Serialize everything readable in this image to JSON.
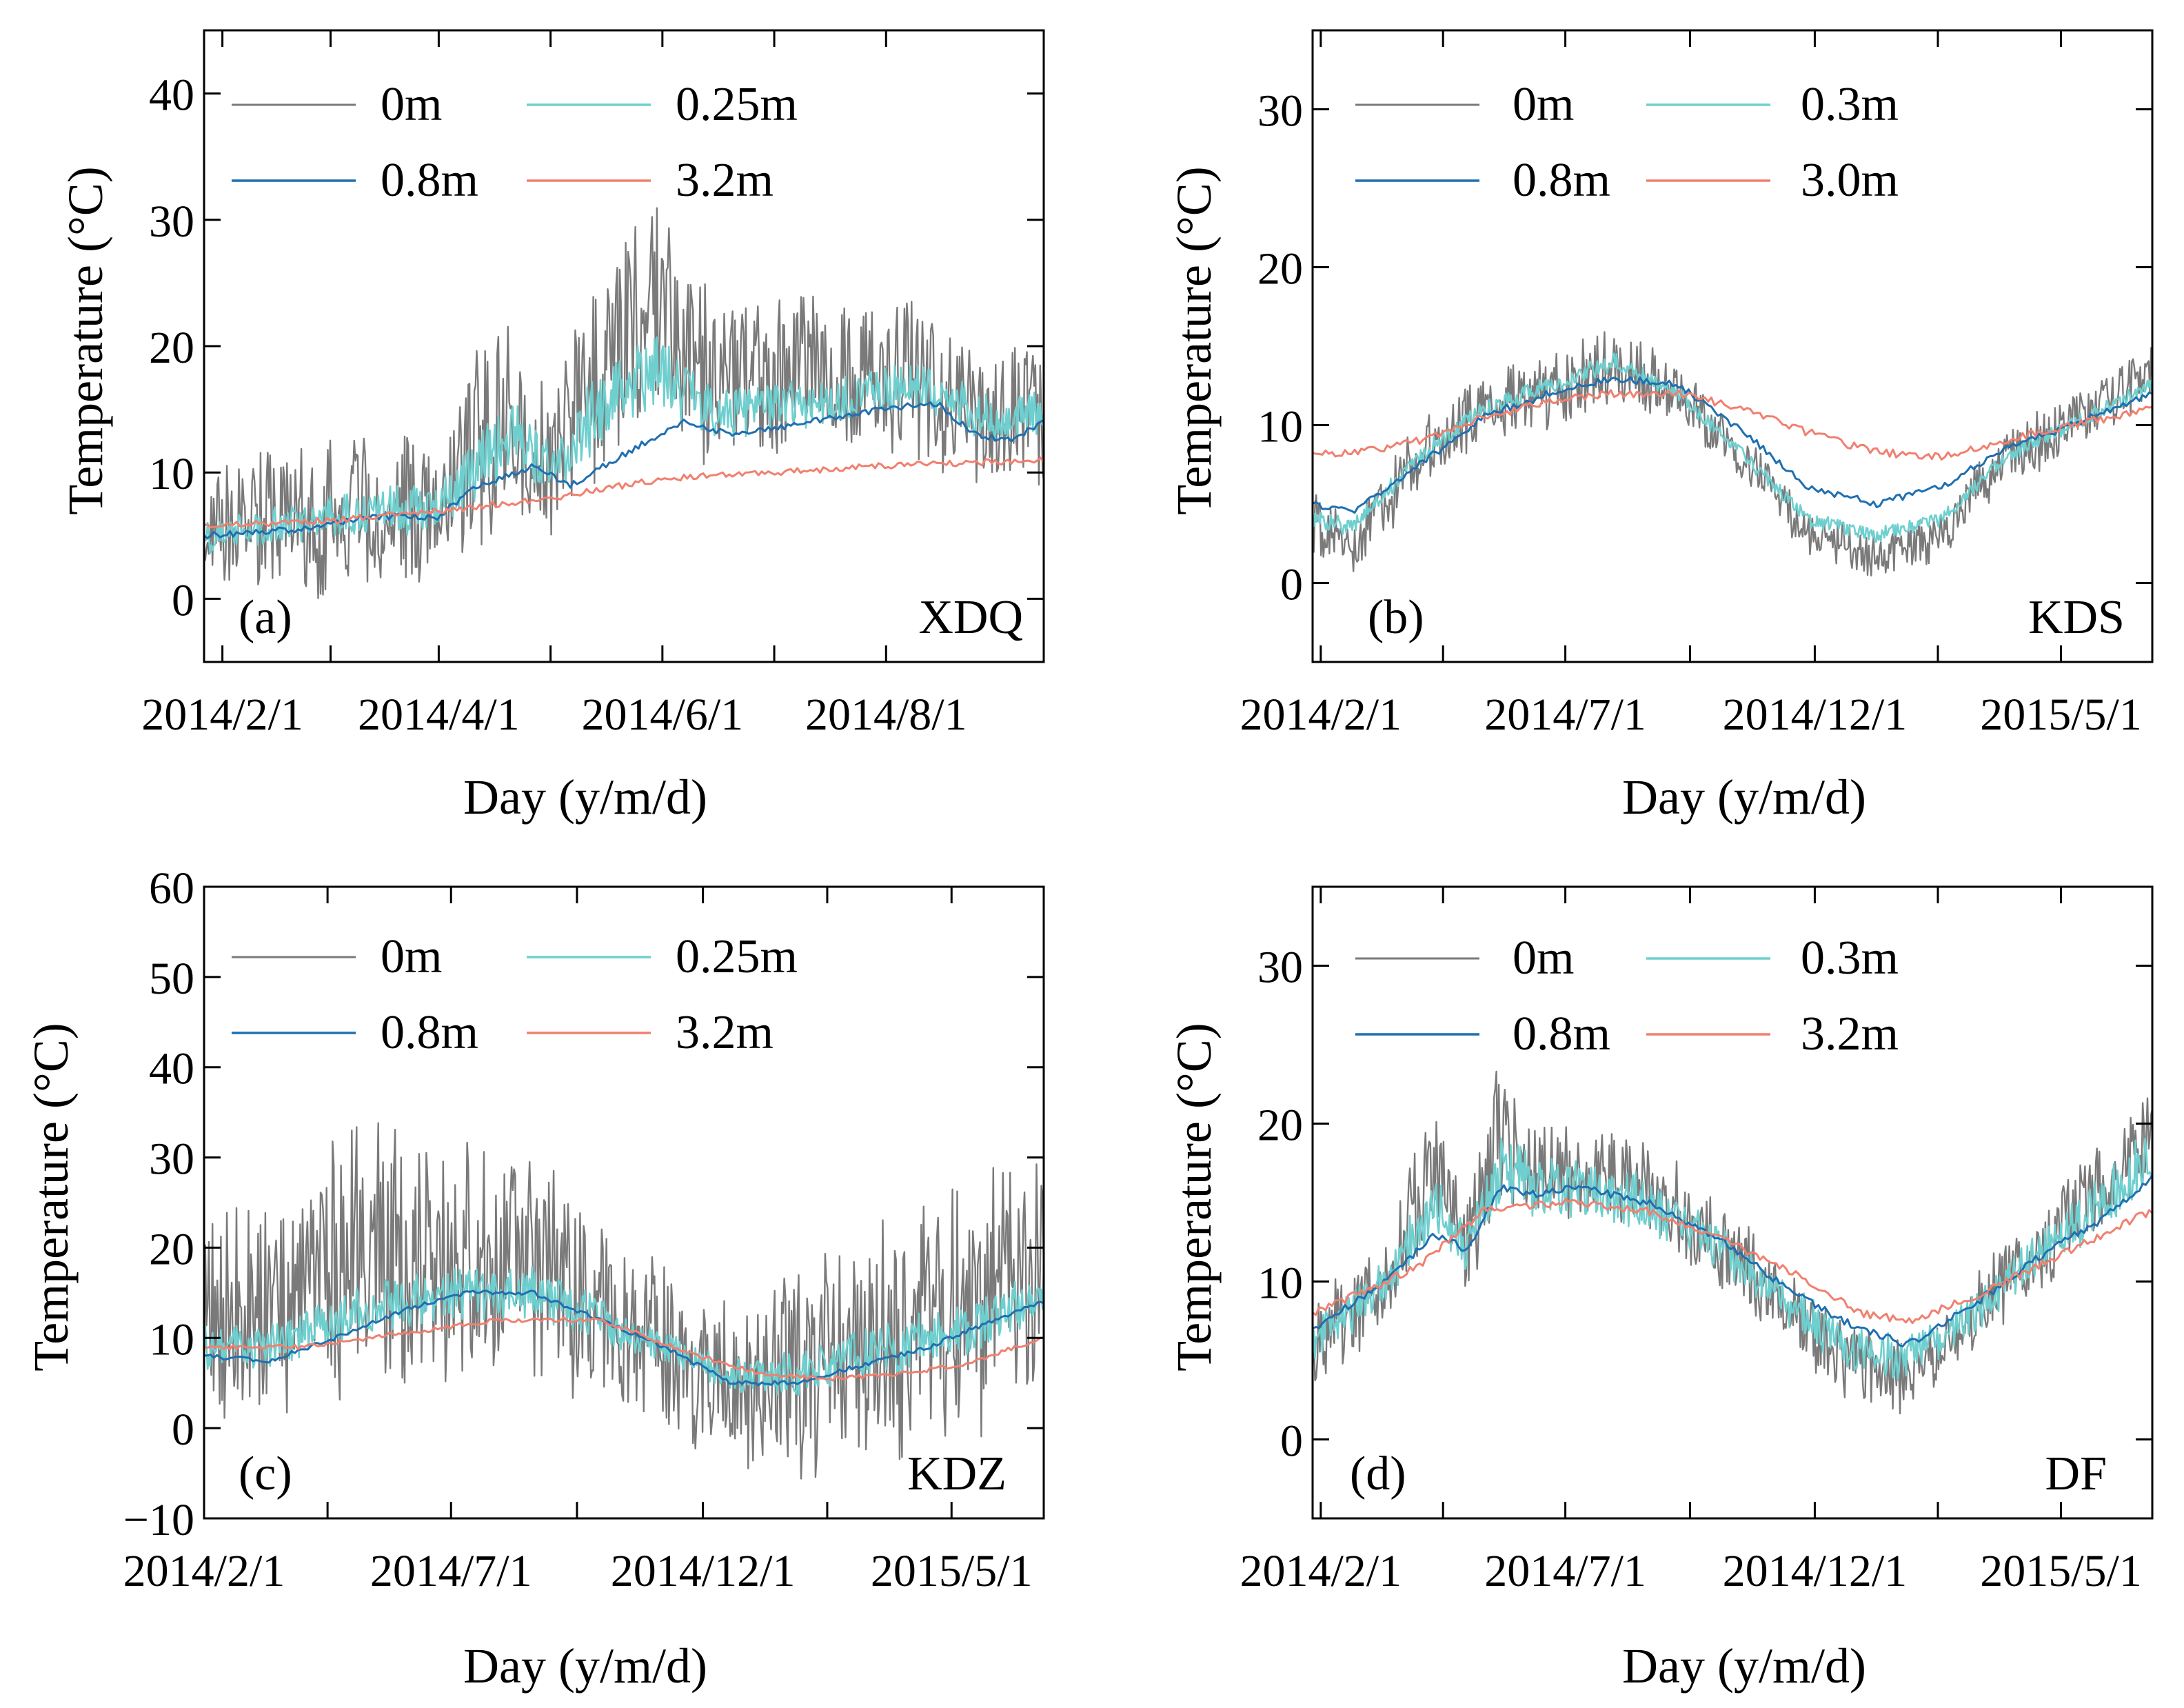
{
  "figure": {
    "colors": {
      "0m": "#7a7a7a",
      "0.25m": "#6fcfcf",
      "0.3m": "#6fcfcf",
      "0.8m": "#1f6fb0",
      "3.2m": "#f08070",
      "3.0m": "#f08070"
    }
  },
  "chart_data": [
    {
      "panel": "(a)",
      "site": "XDQ",
      "type": "line",
      "xlabel": "Day (y/m/d)",
      "ylabel": "Temperature (°C)",
      "ylim": [
        -5,
        45
      ],
      "yticks": [
        "0",
        "10",
        "20",
        "30",
        "40"
      ],
      "xtick_labels": [
        "2014/2/1",
        "2014/4/1",
        "2014/6/1",
        "2014/8/1"
      ],
      "xtick_days": [
        0,
        59,
        120,
        181
      ],
      "xlim_days": [
        -5,
        224
      ],
      "legend": [
        "0m",
        "0.25m",
        "0.8m",
        "3.2m"
      ],
      "series": [
        {
          "name": "0m",
          "x_days": [
            -5,
            20,
            45,
            59,
            70,
            80,
            90,
            100,
            110,
            120,
            130,
            150,
            170,
            190,
            210,
            224
          ],
          "mean": [
            6,
            6,
            7,
            7,
            13,
            15,
            10,
            17,
            21,
            23,
            17,
            17,
            18,
            17,
            14,
            15
          ],
          "amplitude": [
            5,
            6,
            7,
            6,
            9,
            8,
            5,
            9,
            8,
            9,
            8,
            7,
            6,
            7,
            5,
            6
          ]
        },
        {
          "name": "0.25m",
          "x_days": [
            -5,
            20,
            45,
            59,
            70,
            80,
            90,
            100,
            110,
            120,
            130,
            150,
            170,
            190,
            210,
            224
          ],
          "mean": [
            5,
            6,
            7,
            7,
            11,
            13,
            10,
            14,
            17,
            18,
            15,
            15,
            16,
            17,
            14,
            15
          ],
          "amplitude": [
            1.5,
            1.5,
            2,
            2,
            3,
            3,
            2,
            3,
            3,
            3,
            2.5,
            2,
            2,
            2,
            2,
            2
          ]
        },
        {
          "name": "0.8m",
          "x_days": [
            -5,
            20,
            40,
            59,
            70,
            85,
            95,
            110,
            125,
            140,
            160,
            180,
            195,
            205,
            215,
            224
          ],
          "values": [
            5,
            5.5,
            6.5,
            6.5,
            9,
            10.5,
            9,
            11.5,
            14,
            13,
            14,
            15,
            15.5,
            13,
            12.5,
            14
          ]
        },
        {
          "name": "3.2m",
          "x_days": [
            -5,
            30,
            60,
            90,
            120,
            150,
            180,
            224
          ],
          "values": [
            5.8,
            6.2,
            7,
            8,
            9.5,
            10,
            10.5,
            11
          ]
        }
      ]
    },
    {
      "panel": "(b)",
      "site": "KDS",
      "type": "line",
      "xlabel": "Day (y/m/d)",
      "ylabel": "Temperature (°C)",
      "ylim": [
        -5,
        35
      ],
      "yticks": [
        "0",
        "10",
        "20",
        "30"
      ],
      "xtick_labels": [
        "2014/2/1",
        "2014/7/1",
        "2014/12/1",
        "2015/5/1"
      ],
      "xtick_days": [
        0,
        150,
        303,
        454
      ],
      "xlim_days": [
        -5,
        510
      ],
      "legend": [
        "0m",
        "0.3m",
        "0.8m",
        "3.0m"
      ],
      "series": [
        {
          "name": "0m",
          "x_days": [
            -5,
            20,
            60,
            100,
            140,
            180,
            220,
            260,
            300,
            340,
            380,
            420,
            460,
            510
          ],
          "mean": [
            4,
            2,
            8,
            11,
            12,
            14,
            12,
            8,
            3,
            1.5,
            3,
            8,
            10,
            13.5
          ],
          "amplitude": [
            2,
            2,
            2.5,
            2.5,
            2.5,
            2.5,
            2,
            1.5,
            1.5,
            1.5,
            1.5,
            2,
            2,
            2
          ]
        },
        {
          "name": "0.3m",
          "x_days": [
            -5,
            20,
            60,
            100,
            140,
            180,
            220,
            260,
            300,
            340,
            380,
            420,
            460,
            510
          ],
          "mean": [
            4,
            3.5,
            8,
            11,
            12.5,
            14,
            12,
            8,
            4,
            3,
            4,
            8,
            10,
            12.5
          ],
          "amplitude": [
            0.6,
            0.6,
            0.6,
            0.6,
            0.6,
            0.6,
            0.5,
            0.5,
            0.5,
            0.5,
            0.5,
            0.5,
            0.5,
            0.5
          ]
        },
        {
          "name": "0.8m",
          "x_days": [
            -5,
            20,
            60,
            100,
            140,
            180,
            220,
            260,
            300,
            340,
            380,
            420,
            460,
            510
          ],
          "values": [
            5,
            4.5,
            7.5,
            10.5,
            12,
            13,
            12.5,
            9.5,
            6,
            5,
            6,
            8.5,
            10,
            12
          ]
        },
        {
          "name": "3.0m",
          "x_days": [
            -5,
            20,
            60,
            100,
            140,
            180,
            220,
            260,
            300,
            340,
            380,
            420,
            460,
            510
          ],
          "values": [
            8.2,
            8.2,
            9,
            10.5,
            11.5,
            12,
            12,
            11,
            9.5,
            8.3,
            8,
            9,
            10,
            11
          ]
        }
      ]
    },
    {
      "panel": "(c)",
      "site": "KDZ",
      "type": "line",
      "xlabel": "Day (y/m/d)",
      "ylabel": "Temperature (°C)",
      "ylim": [
        -10,
        60
      ],
      "yticks": [
        "−10",
        "0",
        "10",
        "20",
        "30",
        "40",
        "50",
        "60"
      ],
      "xtick_labels": [
        "2014/2/1",
        "2014/7/1",
        "2014/12/1",
        "2015/5/1"
      ],
      "xtick_days": [
        0,
        150,
        303,
        454
      ],
      "xlim_days": [
        0,
        510
      ],
      "legend": [
        "0m",
        "0.25m",
        "0.8m",
        "3.2m"
      ],
      "series": [
        {
          "name": "0m",
          "x_days": [
            0,
            40,
            80,
            120,
            160,
            200,
            240,
            280,
            320,
            360,
            400,
            440,
            480,
            510
          ],
          "mean": [
            13,
            12,
            18,
            20,
            19,
            18,
            12,
            8,
            5,
            6,
            9,
            11,
            14,
            16
          ],
          "amplitude": [
            12,
            12,
            15,
            15,
            14,
            13,
            11,
            10,
            9,
            12,
            14,
            15,
            15,
            15
          ]
        },
        {
          "name": "0.25m",
          "x_days": [
            0,
            40,
            80,
            120,
            160,
            200,
            240,
            280,
            320,
            360,
            400,
            440,
            480,
            510
          ],
          "mean": [
            9,
            9,
            12,
            14,
            15,
            15,
            12,
            9,
            6,
            6,
            8,
            10,
            12,
            15
          ],
          "amplitude": [
            2.5,
            2.5,
            3,
            3,
            3,
            3,
            2.5,
            2,
            2,
            2.5,
            3,
            3,
            3,
            3
          ]
        },
        {
          "name": "0.8m",
          "x_days": [
            0,
            40,
            80,
            120,
            160,
            200,
            240,
            280,
            320,
            360,
            400,
            440,
            480,
            510
          ],
          "values": [
            8,
            7.5,
            10,
            13,
            15,
            15,
            12,
            9,
            5,
            5,
            7,
            9,
            12,
            14
          ]
        },
        {
          "name": "3.2m",
          "x_days": [
            0,
            60,
            120,
            180,
            240,
            300,
            340,
            380,
            420,
            460,
            510
          ],
          "values": [
            9,
            9,
            10.5,
            12,
            12,
            8,
            6,
            5.5,
            6,
            7,
            10
          ]
        }
      ]
    },
    {
      "panel": "(d)",
      "site": "DF",
      "type": "line",
      "xlabel": "Day (y/m/d)",
      "ylabel": "Temperature (°C)",
      "ylim": [
        -5,
        35
      ],
      "yticks": [
        "0",
        "10",
        "20",
        "30"
      ],
      "xtick_labels": [
        "2014/2/1",
        "2014/7/1",
        "2014/12/1",
        "2015/5/1"
      ],
      "xtick_days": [
        0,
        150,
        303,
        454
      ],
      "xlim_days": [
        -5,
        510
      ],
      "legend": [
        "0m",
        "0.3m",
        "0.8m",
        "3.2m"
      ],
      "series": [
        {
          "name": "0m",
          "x_days": [
            -5,
            40,
            70,
            90,
            110,
            130,
            160,
            200,
            240,
            280,
            320,
            360,
            400,
            440,
            480,
            510
          ],
          "mean": [
            6,
            10,
            18,
            12,
            20,
            17,
            17,
            16,
            13,
            9,
            5,
            4,
            8,
            12,
            16,
            19
          ],
          "amplitude": [
            3,
            3,
            4,
            3,
            5,
            3,
            3,
            3,
            3,
            2.5,
            2.5,
            2.5,
            2.5,
            3,
            3,
            3
          ]
        },
        {
          "name": "0.3m",
          "x_days": [
            -5,
            40,
            70,
            90,
            110,
            130,
            160,
            200,
            240,
            280,
            320,
            360,
            400,
            440,
            480,
            510
          ],
          "mean": [
            6,
            10,
            15,
            12,
            17,
            16,
            16,
            15,
            12.5,
            9,
            6,
            5,
            8,
            12,
            15,
            18
          ],
          "amplitude": [
            1.5,
            1.5,
            2,
            1.5,
            2.5,
            2,
            2,
            2,
            1.5,
            1.5,
            1.5,
            1.5,
            1.5,
            1.5,
            2,
            2
          ]
        },
        {
          "name": "0.8m",
          "x_days": [
            -5,
            40,
            70,
            90,
            110,
            130,
            160,
            200,
            240,
            280,
            320,
            360,
            400,
            440,
            480,
            510
          ],
          "values": [
            7,
            10,
            13,
            12,
            16,
            15.5,
            16,
            15,
            13,
            10,
            7.5,
            6,
            8.5,
            11.5,
            14,
            16.5
          ]
        },
        {
          "name": "3.2m",
          "x_days": [
            -5,
            30,
            60,
            100,
            150,
            200,
            250,
            300,
            330,
            360,
            400,
            450,
            510
          ],
          "values": [
            8,
            9.5,
            11,
            14.5,
            15,
            14.5,
            12.5,
            10,
            8,
            7.5,
            9,
            11.5,
            14.5
          ]
        }
      ]
    }
  ]
}
